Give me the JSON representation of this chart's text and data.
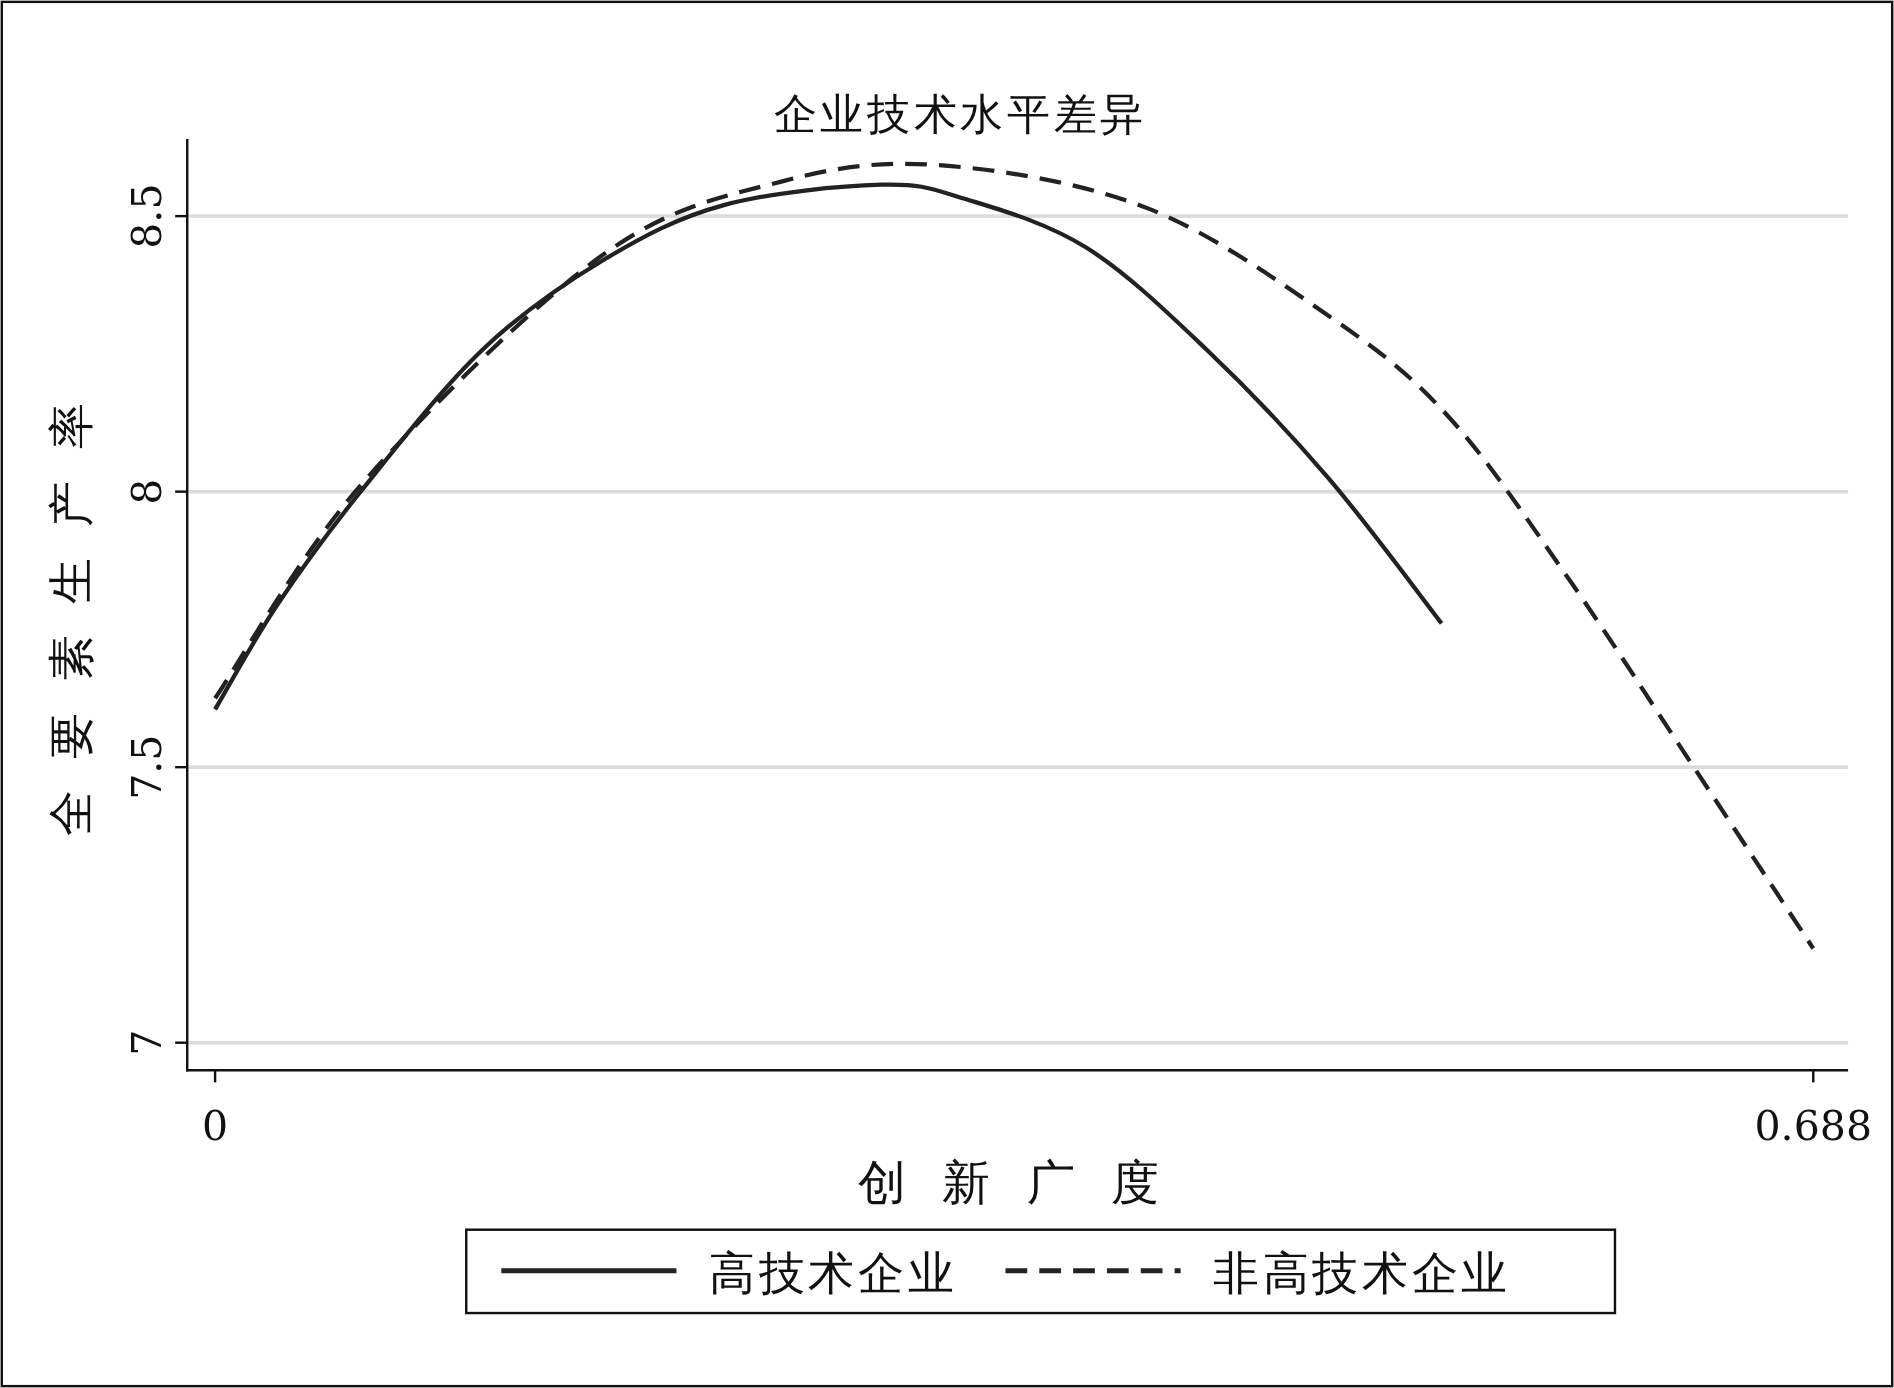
{
  "chart_data": {
    "type": "line",
    "title": "企业技术水平差异",
    "xlabel": "创新广度",
    "ylabel": "全要素生产率",
    "xlim": [
      -0.012,
      0.703
    ],
    "ylim": [
      6.95,
      8.64
    ],
    "xticks": [
      0,
      0.688
    ],
    "yticks": [
      7,
      7.5,
      8,
      8.5
    ],
    "grid": "y",
    "legend": "bottom",
    "marker": "none",
    "series": [
      {
        "name": "高技术企业",
        "color": "#222222",
        "line_style": "solid",
        "x": [
          0,
          0.027,
          0.0634,
          0.115,
          0.167,
          0.219,
          0.287,
          0.323,
          0.375,
          0.427,
          0.479,
          0.528
        ],
        "values": [
          7.605,
          7.796,
          8.004,
          8.257,
          8.42,
          8.52,
          8.557,
          8.531,
          8.443,
          8.257,
          8.026,
          7.761
        ]
      },
      {
        "name": "非高技术企业",
        "color": "#222222",
        "line_style": "dashed",
        "x": [
          0,
          0.0634,
          0.167,
          0.245,
          0.313,
          0.401,
          0.479,
          0.531,
          0.583,
          0.635,
          0.688
        ],
        "values": [
          7.625,
          8.015,
          8.43,
          8.564,
          8.592,
          8.515,
          8.32,
          8.136,
          7.84,
          7.51,
          7.171
        ]
      }
    ]
  }
}
